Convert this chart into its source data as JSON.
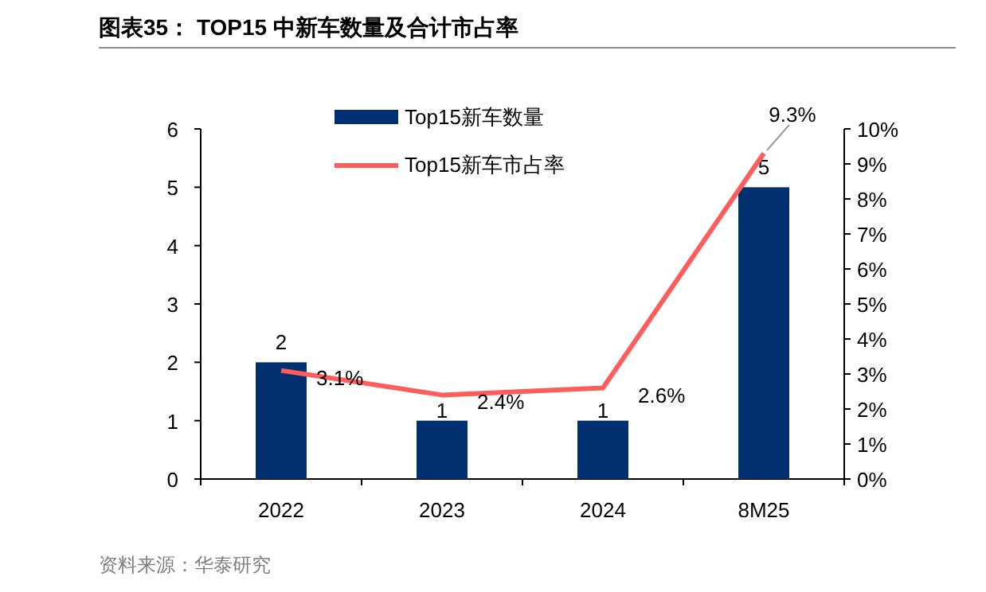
{
  "chart_data": {
    "type": "bar",
    "title": "图表35： TOP15 中新车数量及合计市占率",
    "categories": [
      "2022",
      "2023",
      "2024",
      "8M25"
    ],
    "series": [
      {
        "name": "Top15新车数量",
        "color": "#003070",
        "values": [
          2,
          1,
          1,
          5
        ]
      },
      {
        "type": "line",
        "name": "Top15新车市占率",
        "color": "#ff5c5c",
        "values": [
          3.1,
          2.4,
          2.6,
          9.3
        ],
        "axis": "y2",
        "value_labels": [
          "3.1%",
          "2.4%",
          "2.6%",
          "9.3%"
        ]
      }
    ],
    "ylim": [
      0,
      6
    ],
    "yticks": [
      0,
      1,
      2,
      3,
      4,
      5,
      6
    ],
    "y2lim": [
      0,
      10
    ],
    "y2ticks": [
      {
        "value": 0,
        "label": "0%"
      },
      {
        "value": 1,
        "label": "1%"
      },
      {
        "value": 2,
        "label": "2%"
      },
      {
        "value": 3,
        "label": "3%"
      },
      {
        "value": 4,
        "label": "4%"
      },
      {
        "value": 5,
        "label": "5%"
      },
      {
        "value": 6,
        "label": "6%"
      },
      {
        "value": 7,
        "label": "7%"
      },
      {
        "value": 8,
        "label": "8%"
      },
      {
        "value": 9,
        "label": "9%"
      },
      {
        "value": 10,
        "label": "10%"
      }
    ],
    "legend": "top",
    "data_labels": true,
    "annotations": [
      "资料来源：华泰研究"
    ]
  }
}
